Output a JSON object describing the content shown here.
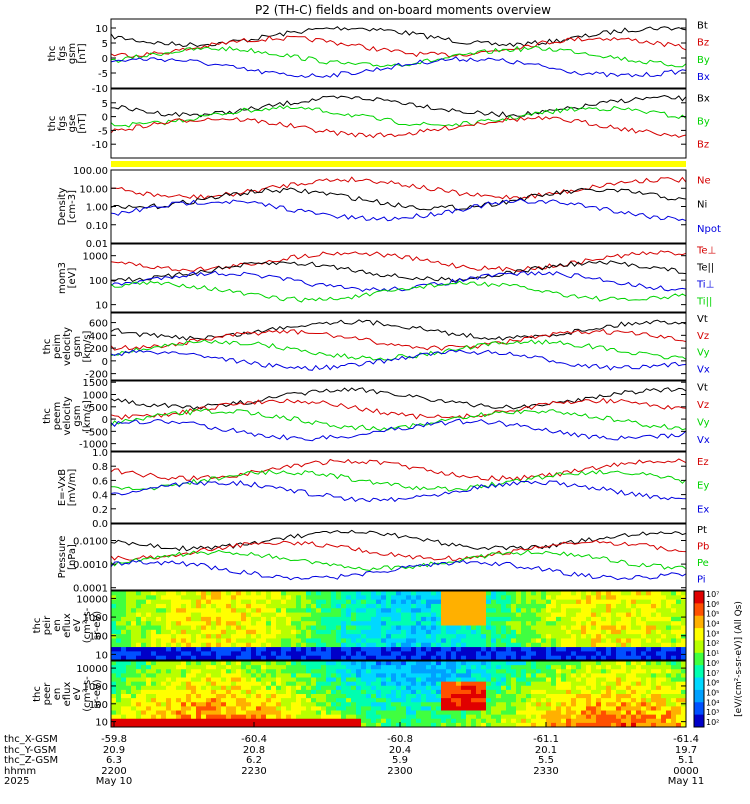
{
  "title": "P2 (TH-C) fields and on-board moments overview",
  "colors": {
    "black": "#000000",
    "red": "#d40000",
    "green": "#00d400",
    "blue": "#0000e0",
    "yellow": "#ffff00"
  },
  "chart_data": [
    {
      "type": "line",
      "name": "fgs-gsm",
      "ylabel": [
        "thc",
        "fgs",
        "gsm",
        "[nT]"
      ],
      "ylim": [
        -10,
        13
      ],
      "ticks": [
        "10",
        "5",
        "0",
        "-5",
        "-10"
      ],
      "tick_values": [
        10,
        5,
        0,
        -5,
        -10
      ],
      "legend": [
        "Bt",
        "Bz",
        "By",
        "Bx"
      ],
      "legend_colors": [
        "black",
        "red",
        "green",
        "blue"
      ]
    },
    {
      "type": "line",
      "name": "fgs-gse",
      "ylabel": [
        "thc",
        "fgs",
        "gse",
        "[nT]"
      ],
      "ylim": [
        -15,
        10
      ],
      "ticks": [
        "5",
        "0",
        "-5",
        "-10"
      ],
      "tick_values": [
        5,
        0,
        -5,
        -10
      ],
      "legend": [
        "Bx",
        "By",
        "Bz"
      ],
      "legend_colors": [
        "black",
        "green",
        "red"
      ]
    },
    {
      "type": "line",
      "name": "density",
      "ylabel": [
        "Density",
        "[cm-3]"
      ],
      "ylim": [
        0.01,
        100
      ],
      "log": true,
      "ticks": [
        "100.00",
        "10.00",
        "1.00",
        "0.10",
        "0.01"
      ],
      "tick_values": [
        100,
        10,
        1,
        0.1,
        0.01
      ],
      "legend": [
        "Ne",
        "Ni",
        "Npot"
      ],
      "legend_colors": [
        "red",
        "black",
        "blue"
      ]
    },
    {
      "type": "line",
      "name": "temperature",
      "ylabel": [
        "mom3",
        "[eV]"
      ],
      "ylim": [
        5,
        3000
      ],
      "log": true,
      "ticks": [
        "1000",
        "100",
        "10"
      ],
      "tick_values": [
        1000,
        100,
        10
      ],
      "legend": [
        "Te⊥",
        "Te||",
        "Ti⊥",
        "Ti||"
      ],
      "legend_colors": [
        "red",
        "black",
        "blue",
        "green"
      ]
    },
    {
      "type": "line",
      "name": "ion-velocity",
      "ylabel": [
        "thc",
        "peim",
        "velocity",
        "gsm",
        "[km/s]"
      ],
      "ylim": [
        -300,
        750
      ],
      "ticks": [
        "600",
        "400",
        "200",
        "0",
        "-200"
      ],
      "tick_values": [
        600,
        400,
        200,
        0,
        -200
      ],
      "legend": [
        "Vt",
        "Vz",
        "Vy",
        "Vx"
      ],
      "legend_colors": [
        "black",
        "red",
        "green",
        "blue"
      ]
    },
    {
      "type": "line",
      "name": "electron-velocity",
      "ylabel": [
        "thc",
        "peem",
        "velocity",
        "gsm",
        "[km/s]"
      ],
      "ylim": [
        -1300,
        1550
      ],
      "ticks": [
        "1500",
        "1000",
        "500",
        "0",
        "-500",
        "-1000"
      ],
      "tick_values": [
        1500,
        1000,
        500,
        0,
        -500,
        -1000
      ],
      "legend": [
        "Vt",
        "Vz",
        "Vy",
        "Vx"
      ],
      "legend_colors": [
        "black",
        "red",
        "green",
        "blue"
      ]
    },
    {
      "type": "line",
      "name": "efield",
      "ylabel": [
        "E=-VxB",
        "[mV/m]"
      ],
      "ylim": [
        0,
        1
      ],
      "ticks": [
        "1.0",
        "0.8",
        "0.6",
        "0.4",
        "0.2",
        "0.0"
      ],
      "tick_values": [
        1,
        0.8,
        0.6,
        0.4,
        0.2,
        0
      ],
      "legend": [
        "Ez",
        "Ey",
        "Ex"
      ],
      "legend_colors": [
        "red",
        "green",
        "blue"
      ]
    },
    {
      "type": "line",
      "name": "pressure",
      "ylabel": [
        "Pressure",
        "[nPa]"
      ],
      "ylim": [
        8e-05,
        0.05
      ],
      "log": true,
      "ticks": [
        "0.0100",
        "0.0010",
        "0.0001"
      ],
      "tick_values": [
        0.01,
        0.001,
        0.0001
      ],
      "legend": [
        "Pt",
        "Pb",
        "Pe",
        "Pi"
      ],
      "legend_colors": [
        "black",
        "red",
        "green",
        "blue"
      ]
    },
    {
      "type": "heatmap",
      "name": "ion-spectrogram",
      "ylabel": [
        "thc",
        "peir",
        "en",
        "eflux",
        "eV",
        "(cm²-s-",
        "sr-eV)"
      ],
      "ylim": [
        5,
        25000
      ],
      "log": true,
      "ticks": [
        "10000",
        "1000",
        "100",
        "10"
      ],
      "tick_values": [
        10000,
        1000,
        100,
        10
      ]
    },
    {
      "type": "heatmap",
      "name": "electron-spectrogram",
      "ylabel": [
        "thc",
        "peer",
        "en",
        "eflux",
        "eV",
        "(cm²-s-",
        "sr-eV)"
      ],
      "ylim": [
        5,
        25000
      ],
      "log": true,
      "ticks": [
        "10000",
        "1000",
        "100",
        "10"
      ],
      "tick_values": [
        10000,
        1000,
        100,
        10
      ]
    }
  ],
  "colorbar": {
    "label": "[eV/(cm²-s-sr-eV)] (All Qs)",
    "ticks": [
      "10⁷",
      "10⁶",
      "10⁵",
      "10⁴",
      "10³",
      "10²",
      "10¹",
      "10⁰",
      "10⁷",
      "10⁶",
      "10⁵",
      "10⁴",
      "10³",
      "10²"
    ]
  },
  "xaxis": {
    "row_labels": [
      "thc_X-GSM",
      "thc_Y-GSM",
      "thc_Z-GSM",
      "hhmm",
      "2025"
    ],
    "ticks": [
      {
        "x": "-59.8",
        "y": "20.9",
        "z": "6.3",
        "t": "2200",
        "d": "May 10"
      },
      {
        "x": "-60.4",
        "y": "20.8",
        "z": "6.2",
        "t": "2230",
        "d": ""
      },
      {
        "x": "-60.8",
        "y": "20.4",
        "z": "5.9",
        "t": "2300",
        "d": ""
      },
      {
        "x": "-61.1",
        "y": "20.1",
        "z": "5.5",
        "t": "2330",
        "d": ""
      },
      {
        "x": "-61.4",
        "y": "19.7",
        "z": "5.1",
        "t": "0000",
        "d": "May 11"
      }
    ]
  }
}
